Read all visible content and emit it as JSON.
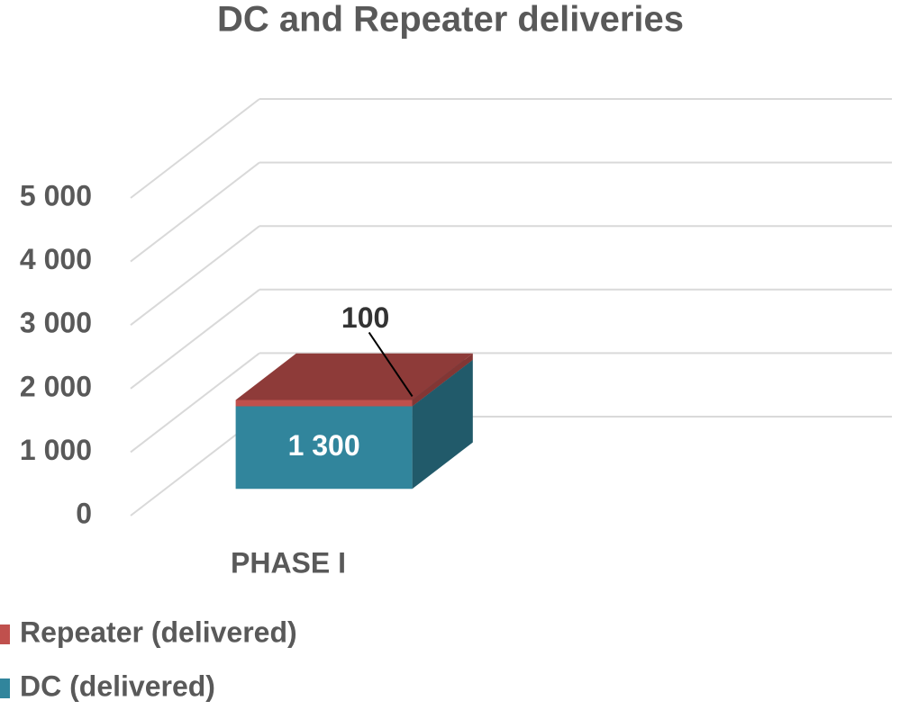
{
  "chart_data": {
    "type": "bar3d_stacked",
    "title": "DC and Repeater deliveries",
    "categories": [
      "PHASE I"
    ],
    "series": [
      {
        "name": "DC (delivered)",
        "color": "#31859c",
        "values": [
          1300
        ],
        "value_labels": [
          "1 300"
        ]
      },
      {
        "name": "Repeater (delivered)",
        "color": "#c0504d",
        "values": [
          100
        ]
      }
    ],
    "ylim": [
      0,
      5000
    ],
    "yticks": [
      {
        "value": 0,
        "label": "0"
      },
      {
        "value": 1000,
        "label": "1 000"
      },
      {
        "value": 2000,
        "label": "2 000"
      },
      {
        "value": 3000,
        "label": "3 000"
      },
      {
        "value": 4000,
        "label": "4 000"
      },
      {
        "value": 5000,
        "label": "5 000"
      }
    ],
    "grid": true
  }
}
